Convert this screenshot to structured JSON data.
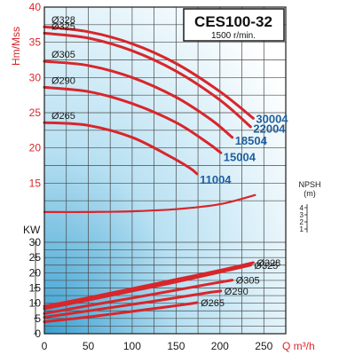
{
  "chart_data": {
    "type": "line",
    "title": "CES100-32",
    "subtitle": "1500 r/min.",
    "xlabel": "Q m³/h",
    "x_ticks": [
      "0",
      "50",
      "100",
      "150",
      "200",
      "250"
    ],
    "xlim": [
      0,
      275
    ],
    "head_panel": {
      "ylabel": "Hm/Mss",
      "ylim": [
        10,
        40
      ],
      "y_ticks": [
        "15",
        "20",
        "25",
        "30",
        "35",
        "40"
      ],
      "series": [
        {
          "name": "Ø328",
          "model": "30004",
          "x": [
            0,
            50,
            100,
            150,
            200,
            238
          ],
          "y": [
            37.2,
            36.5,
            34.8,
            32.0,
            28.0,
            24.2
          ]
        },
        {
          "name": "Ø325",
          "model": "22004",
          "x": [
            0,
            50,
            100,
            150,
            200,
            235
          ],
          "y": [
            36.3,
            35.6,
            33.8,
            30.9,
            26.8,
            23.0
          ]
        },
        {
          "name": "Ø305",
          "model": "18504",
          "x": [
            0,
            50,
            100,
            150,
            190,
            214
          ],
          "y": [
            32.3,
            31.7,
            30.0,
            27.2,
            24.0,
            21.5
          ]
        },
        {
          "name": "Ø290",
          "model": "15004",
          "x": [
            0,
            50,
            100,
            150,
            185,
            201
          ],
          "y": [
            28.6,
            28.0,
            26.3,
            23.6,
            20.8,
            19.3
          ]
        },
        {
          "name": "Ø265",
          "model": "11004",
          "x": [
            0,
            50,
            100,
            140,
            165,
            174
          ],
          "y": [
            23.6,
            23.2,
            21.5,
            19.0,
            17.2,
            16.3
          ]
        }
      ],
      "npsh": {
        "label": "NPSH",
        "unit": "(m)",
        "ticks": [
          "1",
          "2",
          "3",
          "4"
        ],
        "x": [
          0,
          50,
          100,
          150,
          200,
          240
        ],
        "y": [
          10.9,
          10.9,
          11.0,
          11.3,
          12.0,
          13.3
        ]
      }
    },
    "power_panel": {
      "ylabel": "KW",
      "ylim": [
        0,
        30
      ],
      "y_ticks": [
        "0",
        "5",
        "10",
        "15",
        "20",
        "25",
        "30"
      ],
      "series": [
        {
          "name": "Ø328",
          "x": [
            0,
            50,
            100,
            150,
            200,
            238
          ],
          "y": [
            9.0,
            11.8,
            14.8,
            17.8,
            20.8,
            23.3
          ]
        },
        {
          "name": "Ø325",
          "x": [
            0,
            50,
            100,
            150,
            200,
            235
          ],
          "y": [
            8.2,
            11.0,
            14.0,
            17.0,
            20.2,
            22.5
          ]
        },
        {
          "name": "Ø305",
          "x": [
            0,
            50,
            100,
            150,
            190,
            214
          ],
          "y": [
            6.6,
            9.2,
            11.7,
            14.3,
            16.4,
            17.6
          ]
        },
        {
          "name": "Ø290",
          "x": [
            0,
            50,
            100,
            150,
            185,
            201
          ],
          "y": [
            5.4,
            7.5,
            9.6,
            11.8,
            13.4,
            14.0
          ]
        },
        {
          "name": "Ø265",
          "x": [
            0,
            50,
            100,
            140,
            165,
            174
          ],
          "y": [
            3.9,
            5.5,
            7.3,
            8.8,
            9.8,
            10.2
          ]
        }
      ]
    },
    "colors": {
      "curve": "#d8262b",
      "axis_text": "#d8262b",
      "model_text": "#1f5f9e",
      "grid": "#4a4a4a"
    }
  }
}
